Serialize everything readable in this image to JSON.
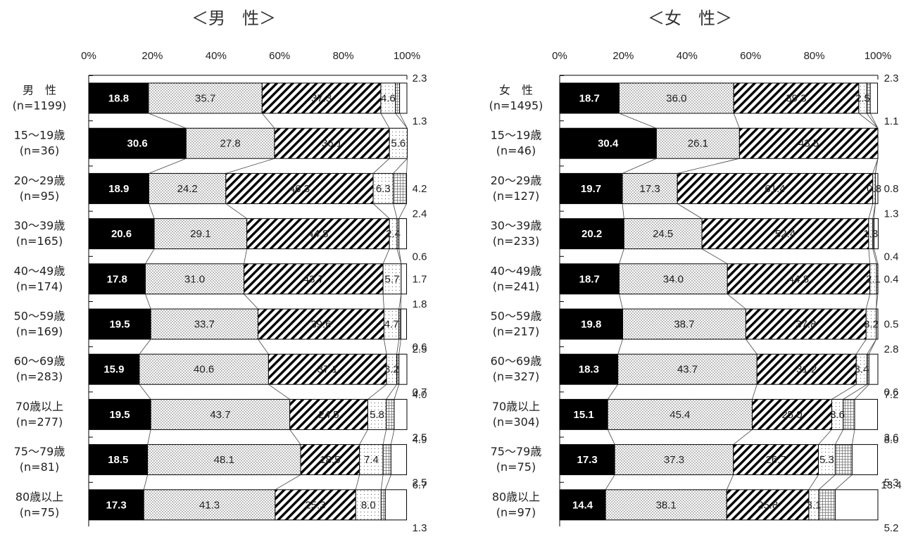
{
  "chart_data": [
    {
      "type": "bar",
      "orientation": "horizontal",
      "stacked": true,
      "title": "＜男　性＞",
      "xlim": [
        0,
        100
      ],
      "xticks": [
        "0%",
        "20%",
        "40%",
        "60%",
        "80%",
        "100%"
      ],
      "categories": [
        [
          "男　性",
          "(n=1199)"
        ],
        [
          "15～19歳",
          "(n=36)"
        ],
        [
          "20～29歳",
          "(n=95)"
        ],
        [
          "30～39歳",
          "(n=165)"
        ],
        [
          "40～49歳",
          "(n=174)"
        ],
        [
          "50～59歳",
          "(n=169)"
        ],
        [
          "60～69歳",
          "(n=283)"
        ],
        [
          "70歳以上",
          "(n=277)"
        ],
        [
          "75～79歳",
          "(n=81)"
        ],
        [
          "80歳以上",
          "(n=75)"
        ]
      ],
      "segments": [
        [
          18.8,
          35.7,
          37.3,
          4.6,
          1.3,
          2.3
        ],
        [
          30.6,
          27.8,
          36.1,
          5.6,
          0,
          0
        ],
        [
          18.9,
          24.2,
          46.3,
          6.3,
          4.2,
          0
        ],
        [
          20.6,
          29.1,
          44.8,
          2.4,
          0.6,
          2.4
        ],
        [
          17.8,
          31.0,
          43.7,
          5.7,
          0,
          1.7
        ],
        [
          19.5,
          33.7,
          39.6,
          4.7,
          0.6,
          1.8
        ],
        [
          15.9,
          40.6,
          37.1,
          3.2,
          0.7,
          2.5
        ],
        [
          19.5,
          43.7,
          24.5,
          5.8,
          2.5,
          4.0
        ],
        [
          18.5,
          48.1,
          18.5,
          7.4,
          2.5,
          4.9
        ],
        [
          17.3,
          41.3,
          25.3,
          8.0,
          1.3,
          6.7
        ]
      ],
      "labels": [
        [
          "18.8",
          "35.7",
          "37.3",
          "4.6",
          "1.3",
          "2.3"
        ],
        [
          "30.6",
          "27.8",
          "36.1",
          "5.6",
          "",
          ""
        ],
        [
          "18.9",
          "24.2",
          "46.3",
          "6.3",
          "4.2",
          ""
        ],
        [
          "20.6",
          "29.1",
          "44.8",
          "2.4",
          "0.6",
          "2.4"
        ],
        [
          "17.8",
          "31.0",
          "43.7",
          "5.7",
          "",
          "1.7"
        ],
        [
          "19.5",
          "33.7",
          "39.6",
          "4.7",
          "0.6",
          "1.8"
        ],
        [
          "15.9",
          "40.6",
          "37.1",
          "3.2",
          "0.7",
          "2.5"
        ],
        [
          "19.5",
          "43.7",
          "24.5",
          "5.8",
          "2.5",
          "4.0"
        ],
        [
          "18.5",
          "48.1",
          "18.5",
          "7.4",
          "2.5",
          "4.9"
        ],
        [
          "17.3",
          "41.3",
          "25.3",
          "8.0",
          "1.3",
          "6.7"
        ]
      ]
    },
    {
      "type": "bar",
      "orientation": "horizontal",
      "stacked": true,
      "title": "＜女　性＞",
      "xlim": [
        0,
        100
      ],
      "xticks": [
        "0%",
        "20%",
        "40%",
        "60%",
        "80%",
        "100%"
      ],
      "categories": [
        [
          "女　性",
          "(n=1495)"
        ],
        [
          "15～19歳",
          "(n=46)"
        ],
        [
          "20～29歳",
          "(n=127)"
        ],
        [
          "30～39歳",
          "(n=233)"
        ],
        [
          "40～49歳",
          "(n=241)"
        ],
        [
          "50～59歳",
          "(n=217)"
        ],
        [
          "60～69歳",
          "(n=327)"
        ],
        [
          "70歳以上",
          "(n=304)"
        ],
        [
          "75～79歳",
          "(n=75)"
        ],
        [
          "80歳以上",
          "(n=97)"
        ]
      ],
      "segments": [
        [
          18.7,
          36.0,
          39.3,
          2.5,
          1.1,
          2.3
        ],
        [
          30.4,
          26.1,
          43.5,
          0,
          0,
          0
        ],
        [
          19.7,
          17.3,
          61.4,
          0.8,
          0,
          0.8
        ],
        [
          20.2,
          24.5,
          52.4,
          1.3,
          0.4,
          1.3
        ],
        [
          18.7,
          34.0,
          44.8,
          2.1,
          0.4,
          0
        ],
        [
          19.8,
          38.7,
          37.8,
          3.2,
          0,
          0.5
        ],
        [
          18.3,
          43.7,
          31.2,
          3.4,
          0.6,
          2.8
        ],
        [
          15.1,
          45.4,
          25.0,
          3.6,
          3.6,
          7.2
        ],
        [
          17.3,
          37.3,
          26.7,
          5.3,
          5.3,
          8.0
        ],
        [
          14.4,
          38.1,
          25.8,
          3.1,
          5.2,
          13.4
        ]
      ],
      "labels": [
        [
          "18.7",
          "36.0",
          "39.3",
          "2.5",
          "1.1",
          "2.3"
        ],
        [
          "30.4",
          "26.1",
          "43.5",
          "",
          "",
          ""
        ],
        [
          "19.7",
          "17.3",
          "61.4",
          "0.8",
          "",
          "0.8"
        ],
        [
          "20.2",
          "24.5",
          "52.4",
          "1.3",
          "0.4",
          "1.3"
        ],
        [
          "18.7",
          "34.0",
          "44.8",
          "2.1",
          "0.4",
          ""
        ],
        [
          "19.8",
          "38.7",
          "37.8",
          "3.2",
          "",
          "0.5"
        ],
        [
          "18.3",
          "43.7",
          "31.2",
          "3.4",
          "0.6",
          "2.8"
        ],
        [
          "15.1",
          "45.4",
          "25.0",
          "3.6",
          "3.6",
          "7.2"
        ],
        [
          "17.3",
          "37.3",
          "26.7",
          "5.3",
          "5.3",
          "8.0"
        ],
        [
          "14.4",
          "38.1",
          "25.8",
          "3.1",
          "5.2",
          "13.4"
        ]
      ]
    }
  ]
}
